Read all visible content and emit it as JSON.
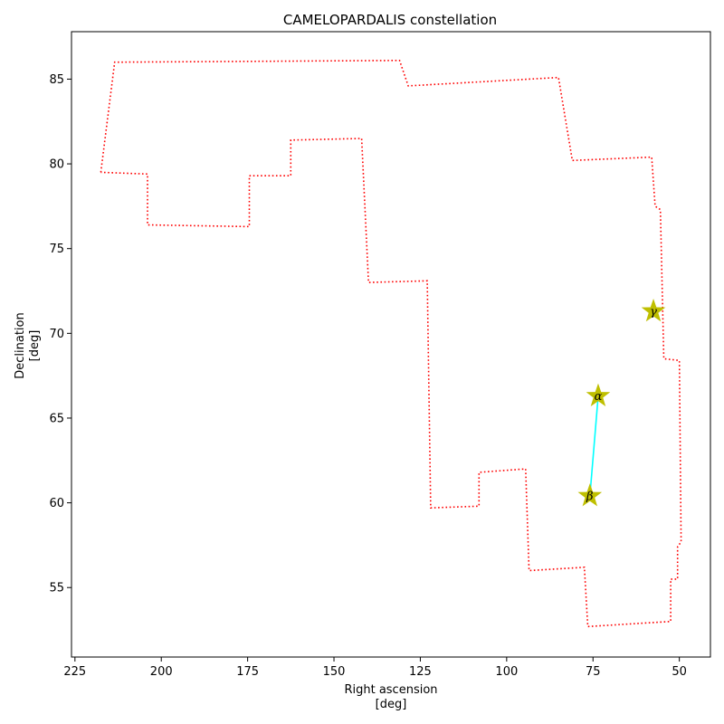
{
  "chart_data": {
    "type": "line",
    "title": "CAMELOPARDALIS constellation",
    "xlabel": [
      "Right ascension",
      "[deg]"
    ],
    "ylabel": [
      "Declination",
      "[deg]"
    ],
    "xlim": [
      226,
      41
    ],
    "ylim": [
      50.9,
      87.8
    ],
    "xticks": [
      225,
      200,
      175,
      150,
      125,
      100,
      75,
      50
    ],
    "yticks": [
      55,
      60,
      65,
      70,
      75,
      80,
      85
    ],
    "boundary": {
      "style": "dotted",
      "color": "#ff0000",
      "points": [
        [
          217.5,
          79.5
        ],
        [
          213.5,
          86.0
        ],
        [
          131.0,
          86.1
        ],
        [
          128.5,
          84.6
        ],
        [
          85.0,
          85.1
        ],
        [
          81.0,
          80.2
        ],
        [
          58.0,
          80.4
        ],
        [
          57.0,
          77.5
        ],
        [
          55.5,
          77.3
        ],
        [
          54.5,
          68.5
        ],
        [
          50.0,
          68.4
        ],
        [
          49.5,
          57.7
        ],
        [
          50.5,
          57.4
        ],
        [
          50.5,
          55.5
        ],
        [
          52.5,
          55.5
        ],
        [
          52.5,
          53.0
        ],
        [
          76.5,
          52.7
        ],
        [
          77.5,
          56.2
        ],
        [
          93.5,
          56.0
        ],
        [
          94.5,
          62.0
        ],
        [
          108.0,
          61.8
        ],
        [
          108.0,
          59.8
        ],
        [
          122.0,
          59.7
        ],
        [
          123.0,
          73.1
        ],
        [
          140.0,
          73.0
        ],
        [
          142.0,
          81.5
        ],
        [
          162.5,
          81.4
        ],
        [
          162.5,
          79.3
        ],
        [
          174.5,
          79.3
        ],
        [
          174.5,
          76.3
        ],
        [
          204.0,
          76.4
        ],
        [
          204.0,
          79.4
        ],
        [
          217.5,
          79.5
        ]
      ]
    },
    "stars": [
      {
        "name": "α",
        "ra": 73.5,
        "dec": 66.3
      },
      {
        "name": "β",
        "ra": 75.9,
        "dec": 60.4
      },
      {
        "name": "γ",
        "ra": 57.5,
        "dec": 71.3
      }
    ],
    "star_color": "#bfbf00",
    "asterism": {
      "color": "#00ffff",
      "segments": [
        [
          0,
          1
        ]
      ]
    }
  }
}
